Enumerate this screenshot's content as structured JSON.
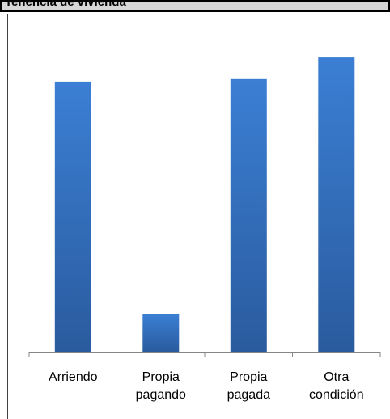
{
  "chart_title": "Tenencia de vivienda",
  "chart_data": {
    "type": "bar",
    "title": "",
    "categories": [
      [
        "Arriendo"
      ],
      [
        "Propia",
        "pagando"
      ],
      [
        "Propia",
        "pagada"
      ],
      [
        "Otra",
        "condición"
      ]
    ],
    "values": [
      32.5,
      4.5,
      32.9,
      35.5
    ],
    "ylim": [
      0,
      40
    ],
    "xlabel": "",
    "ylabel": "",
    "grid": false,
    "legend": "none",
    "bar_color_top": "#3b7fd4",
    "bar_color_bottom": "#2a5b9e",
    "axis_color": "#868686"
  }
}
